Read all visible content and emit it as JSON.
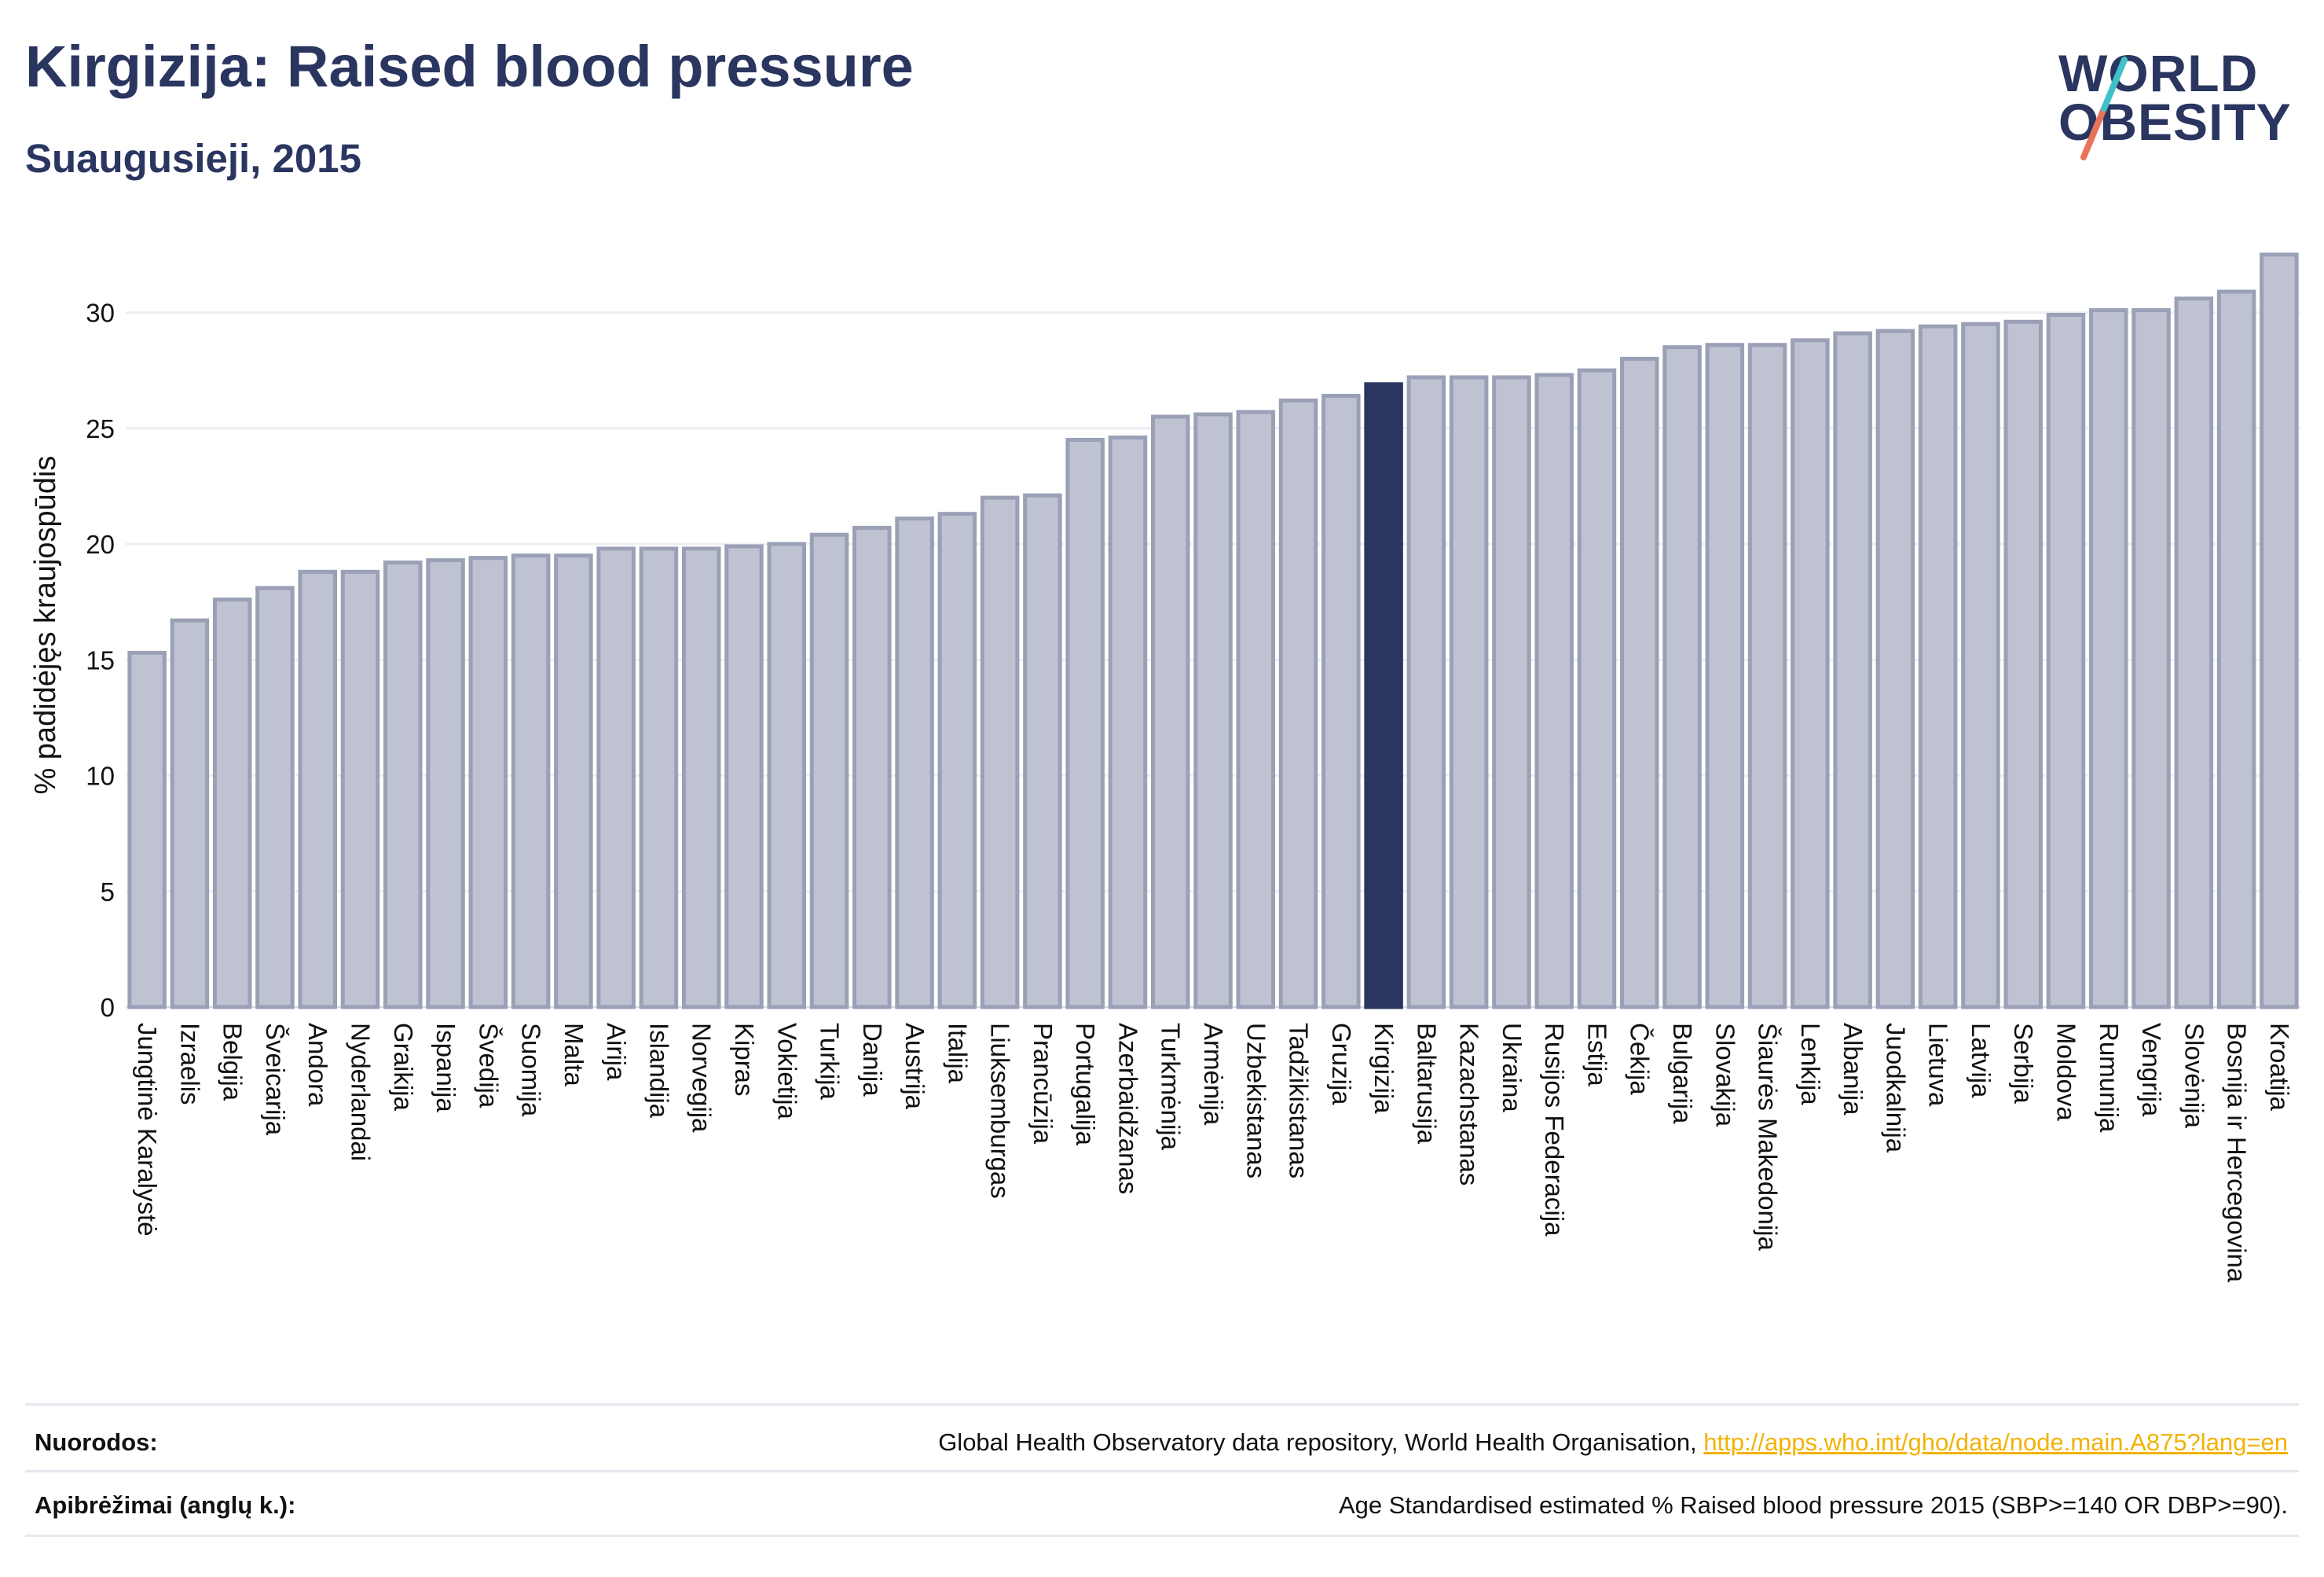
{
  "header": {
    "title": "Kirgizija: Raised blood pressure",
    "subtitle": "Suaugusieji, 2015"
  },
  "logo": {
    "line1": "WORLD",
    "line2": "OBESITY",
    "colors": {
      "text": "#2a3560",
      "slash_top": "#3fc1c9",
      "slash_bottom": "#e8735a"
    }
  },
  "colors": {
    "bar": "#bfc3d1",
    "bar_stroke": "#9aa0b6",
    "highlight": "#2a3560",
    "gridline": "#eceef3",
    "axis_text": "#111111",
    "link": "#f2b200"
  },
  "chart_data": {
    "type": "bar",
    "ylabel": "% padidėjęs kraujospūdis",
    "ylim": [
      0,
      33
    ],
    "yticks": [
      0,
      5,
      10,
      15,
      20,
      25,
      30
    ],
    "grid": true,
    "highlight": "Kirgizija",
    "categories": [
      "Jungtinė Karalystė",
      "Izraelis",
      "Belgija",
      "Šveicarija",
      "Andora",
      "Nyderlandai",
      "Graikija",
      "Ispanija",
      "Švedija",
      "Suomija",
      "Malta",
      "Airija",
      "Islandija",
      "Norvegija",
      "Kipras",
      "Vokietija",
      "Turkija",
      "Danija",
      "Austrija",
      "Italija",
      "Liuksemburgas",
      "Prancūzija",
      "Portugalija",
      "Azerbaidžanas",
      "Turkmėnija",
      "Armėnija",
      "Uzbekistanas",
      "Tadžikistanas",
      "Gruzija",
      "Kirgizija",
      "Baltarusija",
      "Kazachstanas",
      "Ukraina",
      "Rusijos Federacija",
      "Estija",
      "Čekija",
      "Bulgarija",
      "Slovakija",
      "Šiaurės Makedonija",
      "Lenkija",
      "Albanija",
      "Juodkalnija",
      "Lietuva",
      "Latvija",
      "Serbija",
      "Moldova",
      "Rumunija",
      "Vengrija",
      "Slovėnija",
      "Bosnija ir Hercegovina",
      "Kroatija"
    ],
    "values": [
      15.3,
      16.7,
      17.6,
      18.1,
      18.8,
      18.8,
      19.2,
      19.3,
      19.4,
      19.5,
      19.5,
      19.8,
      19.8,
      19.8,
      19.9,
      20.0,
      20.4,
      20.7,
      21.1,
      21.3,
      22.0,
      22.1,
      24.5,
      24.6,
      25.5,
      25.6,
      25.7,
      26.2,
      26.4,
      26.9,
      27.2,
      27.2,
      27.2,
      27.3,
      27.5,
      28.0,
      28.5,
      28.6,
      28.6,
      28.8,
      29.1,
      29.2,
      29.4,
      29.5,
      29.6,
      29.9,
      30.1,
      30.1,
      30.6,
      30.9,
      32.5
    ]
  },
  "footer": {
    "sources_label": "Nuorodos:",
    "sources_text": "Global Health Observatory data repository, World Health Organisation, ",
    "sources_link": "http://apps.who.int/gho/data/node.main.A875?lang=en",
    "definitions_label": "Apibrėžimai (anglų k.):",
    "definitions_text": "Age Standardised estimated % Raised blood pressure 2015 (SBP>=140 OR DBP>=90)."
  }
}
